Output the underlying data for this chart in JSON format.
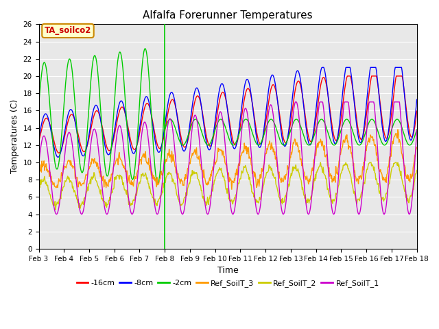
{
  "title": "Alfalfa Forerunner Temperatures",
  "xlabel": "Time",
  "ylabel": "Temperatures (C)",
  "ylim": [
    0,
    26
  ],
  "yticks": [
    0,
    2,
    4,
    6,
    8,
    10,
    12,
    14,
    16,
    18,
    20,
    22,
    24,
    26
  ],
  "xtick_labels": [
    "Feb 3",
    "Feb 4",
    "Feb 5",
    "Feb 6",
    "Feb 7",
    "Feb 8",
    "Feb 9",
    "Feb 10",
    "Feb 11",
    "Feb 12",
    "Feb 13",
    "Feb 14",
    "Feb 15",
    "Feb 16",
    "Feb 17",
    "Feb 18"
  ],
  "annotation_text": "TA_soilco2",
  "annotation_color": "#cc0000",
  "annotation_bg": "#ffffcc",
  "annotation_border": "#cc8800",
  "colors": {
    "neg16cm": "#ff0000",
    "neg8cm": "#0000ff",
    "neg2cm": "#00cc00",
    "Ref_SoilT_3": "#ff9900",
    "Ref_SoilT_2": "#cccc00",
    "Ref_SoilT_1": "#cc00cc"
  },
  "legend_labels": [
    "-16cm",
    "-8cm",
    "-2cm",
    "Ref_SoilT_3",
    "Ref_SoilT_2",
    "Ref_SoilT_1"
  ],
  "plot_bg_color": "#e8e8e8",
  "n_points": 720,
  "vline_day": 5.0
}
